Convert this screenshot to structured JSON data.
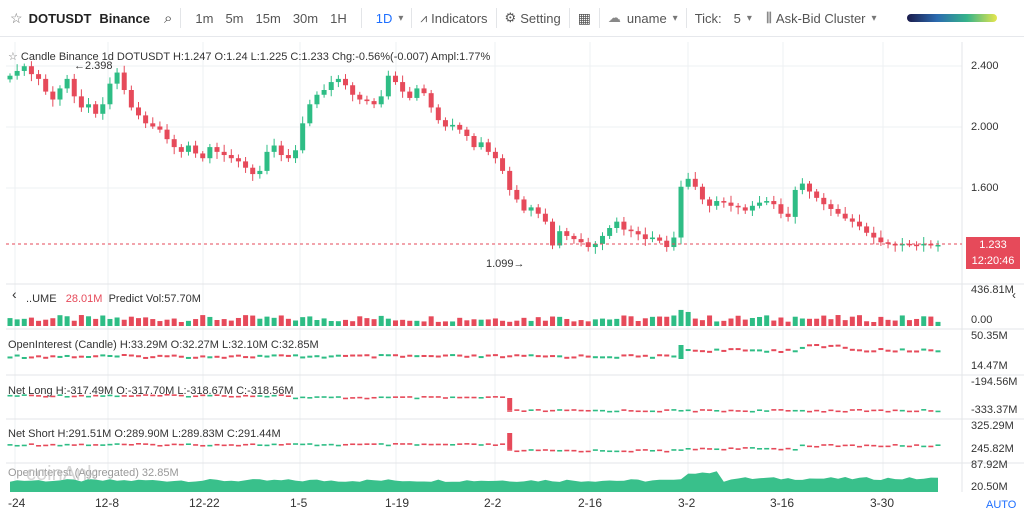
{
  "toolbar": {
    "symbol": "DOTUSDT",
    "exchange": "Binance",
    "timeframes": [
      "1m",
      "5m",
      "15m",
      "30m",
      "1H",
      "1D"
    ],
    "active_timeframe": "1D",
    "indicators_label": "Indicators",
    "setting_label": "Setting",
    "user_label": "uname",
    "tick_label": "Tick:",
    "tick_value": "5",
    "cluster_label": "Ask-Bid Cluster"
  },
  "legend": {
    "main": "Candle  Binance 1d DOTUSDT H:1.247  O:1.24  L:1.225  C:1.233  Chg:-0.56%(-0.007)  Ampl:1.77%",
    "volume_name": "..UME",
    "volume_value": "28.01M",
    "volume_predict": "Predict Vol:57.70M",
    "oi_candle": "OpenInterest (Candle)   H:33.29M  O:32.27M  L:32.10M  C:32.85M",
    "net_long": "Net Long   H:-317.49M  O:-317.70M  L:-318.67M  C:-318.56M",
    "net_short": "Net Short   H:291.51M  O:289.90M  L:289.83M  C:291.44M",
    "oi": "OpenInterest (Aggregated) 32.85M"
  },
  "annotations": {
    "high": "2.398",
    "low": "1.099"
  },
  "price_axis": [
    "2.400",
    "2.000",
    "1.600"
  ],
  "last_price": "1.233",
  "countdown": "12:20:46",
  "pane_axes": {
    "volume": [
      "436.81M",
      "0.00"
    ],
    "oi_candle": [
      "50.35M",
      "14.47M"
    ],
    "net_long": [
      "-194.56M",
      "-333.37M"
    ],
    "net_short": [
      "325.29M",
      "245.82M"
    ],
    "oi": [
      "87.92M",
      "20.50M"
    ]
  },
  "x_ticks": [
    "-24",
    "12-8",
    "12-22",
    "1-5",
    "1-19",
    "2-2",
    "2-16",
    "3-2",
    "3-16",
    "3-30"
  ],
  "auto_label": "AUTO",
  "watermark": "coinAnk",
  "colors": {
    "up": "#2ebd85",
    "down": "#e64a5a",
    "accent": "#1e6fff"
  },
  "chart_data": {
    "type": "candlestick",
    "symbol": "DOTUSDT",
    "timeframe": "1D",
    "ylim": [
      1.05,
      2.5
    ],
    "close": [
      2.3,
      2.33,
      2.36,
      2.31,
      2.28,
      2.2,
      2.15,
      2.22,
      2.28,
      2.17,
      2.1,
      2.12,
      2.06,
      2.12,
      2.25,
      2.32,
      2.21,
      2.1,
      2.05,
      2.0,
      1.98,
      1.96,
      1.9,
      1.85,
      1.82,
      1.86,
      1.81,
      1.78,
      1.85,
      1.82,
      1.8,
      1.78,
      1.76,
      1.72,
      1.68,
      1.7,
      1.82,
      1.86,
      1.8,
      1.78,
      1.83,
      2.0,
      2.12,
      2.18,
      2.21,
      2.26,
      2.28,
      2.24,
      2.18,
      2.15,
      2.14,
      2.12,
      2.17,
      2.3,
      2.26,
      2.2,
      2.16,
      2.22,
      2.19,
      2.1,
      2.02,
      1.98,
      1.99,
      1.96,
      1.92,
      1.85,
      1.88,
      1.82,
      1.78,
      1.7,
      1.58,
      1.52,
      1.45,
      1.47,
      1.43,
      1.38,
      1.23,
      1.32,
      1.29,
      1.27,
      1.25,
      1.22,
      1.24,
      1.29,
      1.34,
      1.38,
      1.33,
      1.32,
      1.3,
      1.27,
      1.28,
      1.26,
      1.22,
      1.28,
      1.6,
      1.65,
      1.6,
      1.52,
      1.48,
      1.51,
      1.5,
      1.48,
      1.47,
      1.45,
      1.48,
      1.5,
      1.51,
      1.49,
      1.43,
      1.41,
      1.58,
      1.62,
      1.57,
      1.53,
      1.49,
      1.46,
      1.43,
      1.4,
      1.38,
      1.35,
      1.31,
      1.28,
      1.25,
      1.24,
      1.23,
      1.24,
      1.235,
      1.23,
      1.24,
      1.23,
      1.233
    ],
    "x_ticks": [
      "-24",
      "12-8",
      "12-22",
      "1-5",
      "1-19",
      "2-2",
      "2-16",
      "3-2",
      "3-16",
      "3-30"
    ]
  }
}
